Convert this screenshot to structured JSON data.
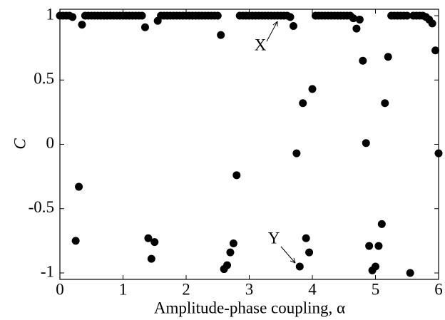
{
  "chart_data": {
    "type": "scatter",
    "x_label": "Amplitude-phase coupling, α",
    "y_label": "C",
    "annotations": [
      "X",
      "Y"
    ],
    "color": "#000000",
    "xlim": [
      0,
      6
    ],
    "ylim": [
      -1.05,
      1.05
    ],
    "xticks": [
      0,
      1,
      2,
      3,
      4,
      5,
      6
    ],
    "yticks": [
      -1,
      -0.5,
      0,
      0.5,
      1
    ],
    "x": [
      0,
      0.05,
      0.1,
      0.15,
      0.2,
      0.25,
      0.3,
      0.35,
      0.4,
      0.45,
      0.5,
      0.55,
      0.6,
      0.65,
      0.7,
      0.75,
      0.8,
      0.85,
      0.9,
      0.95,
      1,
      1.05,
      1.1,
      1.15,
      1.2,
      1.25,
      1.3,
      1.35,
      1.4,
      1.45,
      1.5,
      1.55,
      1.6,
      1.65,
      1.7,
      1.75,
      1.8,
      1.85,
      1.9,
      1.95,
      2,
      2.05,
      2.1,
      2.15,
      2.2,
      2.25,
      2.3,
      2.35,
      2.4,
      2.45,
      2.5,
      2.55,
      2.6,
      2.65,
      2.7,
      2.75,
      2.8,
      2.85,
      2.9,
      2.95,
      3,
      3.05,
      3.1,
      3.15,
      3.2,
      3.25,
      3.3,
      3.35,
      3.4,
      3.45,
      3.5,
      3.55,
      3.6,
      3.65,
      3.7,
      3.75,
      3.8,
      3.85,
      3.9,
      3.95,
      4,
      4.05,
      4.1,
      4.15,
      4.2,
      4.25,
      4.3,
      4.35,
      4.4,
      4.45,
      4.5,
      4.55,
      4.6,
      4.65,
      4.7,
      4.75,
      4.8,
      4.85,
      4.9,
      4.95,
      5,
      5.05,
      5.1,
      5.15,
      5.2,
      5.25,
      5.3,
      5.35,
      5.4,
      5.45,
      5.5,
      5.55,
      5.6,
      5.65,
      5.7,
      5.75,
      5.8,
      5.85,
      5.9,
      5.95,
      6
    ],
    "y": [
      1,
      1,
      1,
      1,
      0.99,
      -0.75,
      -0.33,
      0.93,
      1,
      1,
      1,
      1,
      1,
      1,
      1,
      1,
      1,
      1,
      1,
      1,
      1,
      1,
      1,
      1,
      1,
      1,
      1,
      0.91,
      -0.73,
      -0.89,
      -0.76,
      0.96,
      1,
      1,
      1,
      1,
      1,
      1,
      1,
      1,
      1,
      1,
      1,
      1,
      1,
      1,
      1,
      1,
      1,
      1,
      1,
      0.85,
      -0.97,
      -0.94,
      -0.84,
      -0.77,
      -0.24,
      1,
      1,
      1,
      1,
      1,
      1,
      1,
      1,
      1,
      1,
      1,
      1,
      1,
      1,
      1,
      1,
      0.99,
      0.92,
      -0.07,
      -0.95,
      0.32,
      -0.73,
      -0.84,
      0.43,
      1,
      1,
      1,
      1,
      1,
      1,
      1,
      1,
      1,
      1,
      1,
      1,
      0.98,
      0.9,
      0.97,
      0.65,
      0.01,
      -0.79,
      -0.98,
      -0.95,
      -0.79,
      -0.62,
      0.32,
      0.68,
      1,
      1,
      1,
      1,
      1,
      1,
      -1,
      1,
      1,
      1,
      1,
      0.99,
      0.97,
      0.94,
      0.73,
      -0.07
    ]
  }
}
